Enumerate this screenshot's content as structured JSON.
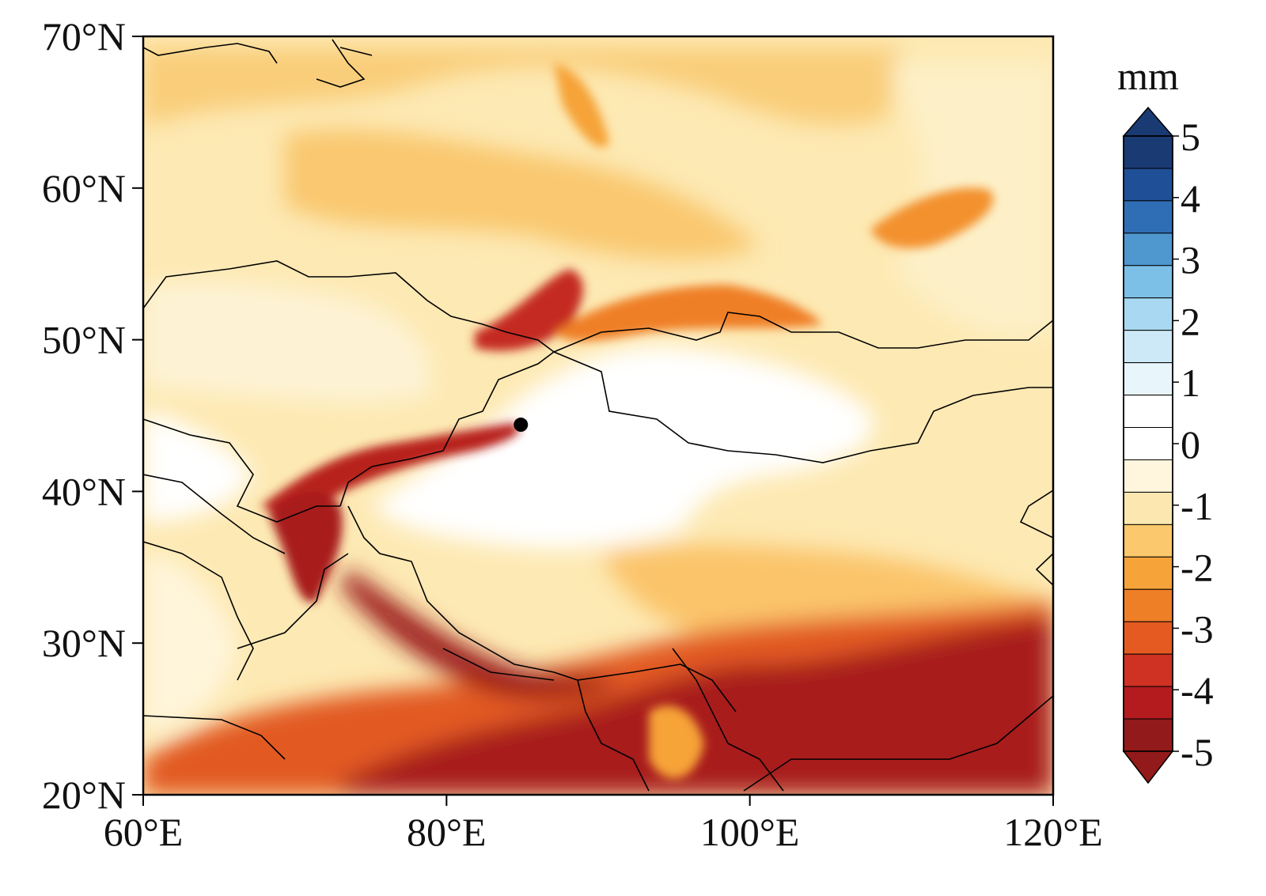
{
  "map": {
    "extent": {
      "lon": [
        60,
        120
      ],
      "lat": [
        20,
        70
      ]
    },
    "x_ticks": [
      {
        "value": 60,
        "label": "60°E"
      },
      {
        "value": 80,
        "label": "80°E"
      },
      {
        "value": 100,
        "label": "100°E"
      },
      {
        "value": 120,
        "label": "120°E"
      }
    ],
    "y_ticks": [
      {
        "value": 70,
        "label": "70°N"
      },
      {
        "value": 60,
        "label": "60°N"
      },
      {
        "value": 50,
        "label": "50°N"
      },
      {
        "value": 40,
        "label": "40°N"
      },
      {
        "value": 30,
        "label": "30°N"
      },
      {
        "value": 20,
        "label": "20°N"
      }
    ],
    "marker": {
      "lon": 84.9,
      "lat": 44.4,
      "color": "#000000"
    }
  },
  "colorbar": {
    "unit": "mm",
    "labels": [
      "5",
      "4",
      "3",
      "2",
      "1",
      "0",
      "-1",
      "-2",
      "-3",
      "-4",
      "-5"
    ],
    "colors_top_to_bottom": [
      "#1a3a73",
      "#1f4f96",
      "#2f6db5",
      "#4f97cf",
      "#7cc0e8",
      "#a9d9f2",
      "#cde9f7",
      "#e8f5fb",
      "#ffffff",
      "#ffffff",
      "#fff6dd",
      "#fde7b0",
      "#fbc86d",
      "#f6a339",
      "#ef7f26",
      "#e45a21",
      "#cf3123",
      "#b31b1f",
      "#931a1a"
    ],
    "over_color": "#1a3a73",
    "under_color": "#931a1a"
  }
}
